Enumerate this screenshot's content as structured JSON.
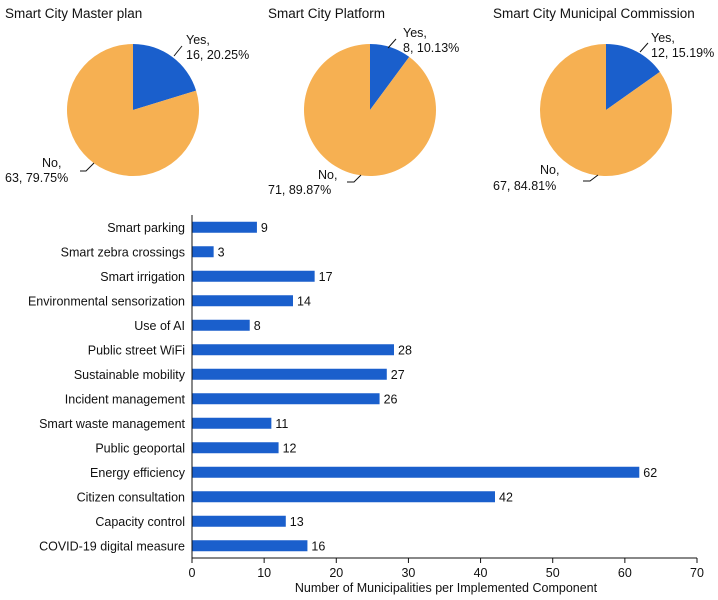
{
  "colors": {
    "yes": "#1a5fcc",
    "no": "#f6b052",
    "bar": "#1a5fcc",
    "axis": "#111111"
  },
  "chart_data": [
    {
      "type": "pie",
      "title": "Smart City Master plan",
      "slices": [
        {
          "name": "Yes",
          "value": 16,
          "percent": 20.25,
          "label_line1": "Yes,",
          "label_line2": "16, 20.25%"
        },
        {
          "name": "No",
          "value": 63,
          "percent": 79.75,
          "label_line1": "No,",
          "label_line2": "63, 79.75%"
        }
      ]
    },
    {
      "type": "pie",
      "title": "Smart City Platform",
      "slices": [
        {
          "name": "Yes",
          "value": 8,
          "percent": 10.13,
          "label_line1": "Yes,",
          "label_line2": "8, 10.13%"
        },
        {
          "name": "No",
          "value": 71,
          "percent": 89.87,
          "label_line1": "No,",
          "label_line2": "71, 89.87%"
        }
      ]
    },
    {
      "type": "pie",
      "title": "Smart City Municipal Commission",
      "slices": [
        {
          "name": "Yes",
          "value": 12,
          "percent": 15.19,
          "label_line1": "Yes,",
          "label_line2": "12, 15.19%"
        },
        {
          "name": "No",
          "value": 67,
          "percent": 84.81,
          "label_line1": "No,",
          "label_line2": "67, 84.81%"
        }
      ]
    },
    {
      "type": "bar",
      "orientation": "horizontal",
      "categories": [
        "Smart parking",
        "Smart zebra crossings",
        "Smart irrigation",
        "Environmental sensorization",
        "Use of AI",
        "Public street WiFi",
        "Sustainable mobility",
        "Incident management",
        "Smart waste management",
        "Public geoportal",
        "Energy efficiency",
        "Citizen consultation",
        "Capacity control",
        "COVID-19 digital measure"
      ],
      "values": [
        9,
        3,
        17,
        14,
        8,
        28,
        27,
        26,
        11,
        12,
        62,
        42,
        13,
        16
      ],
      "xlabel": "Number of Municipalities per Implemented Component",
      "ylabel": "",
      "xlim": [
        0,
        70
      ],
      "xticks": [
        0,
        10,
        20,
        30,
        40,
        50,
        60,
        70
      ],
      "grid": false
    }
  ]
}
